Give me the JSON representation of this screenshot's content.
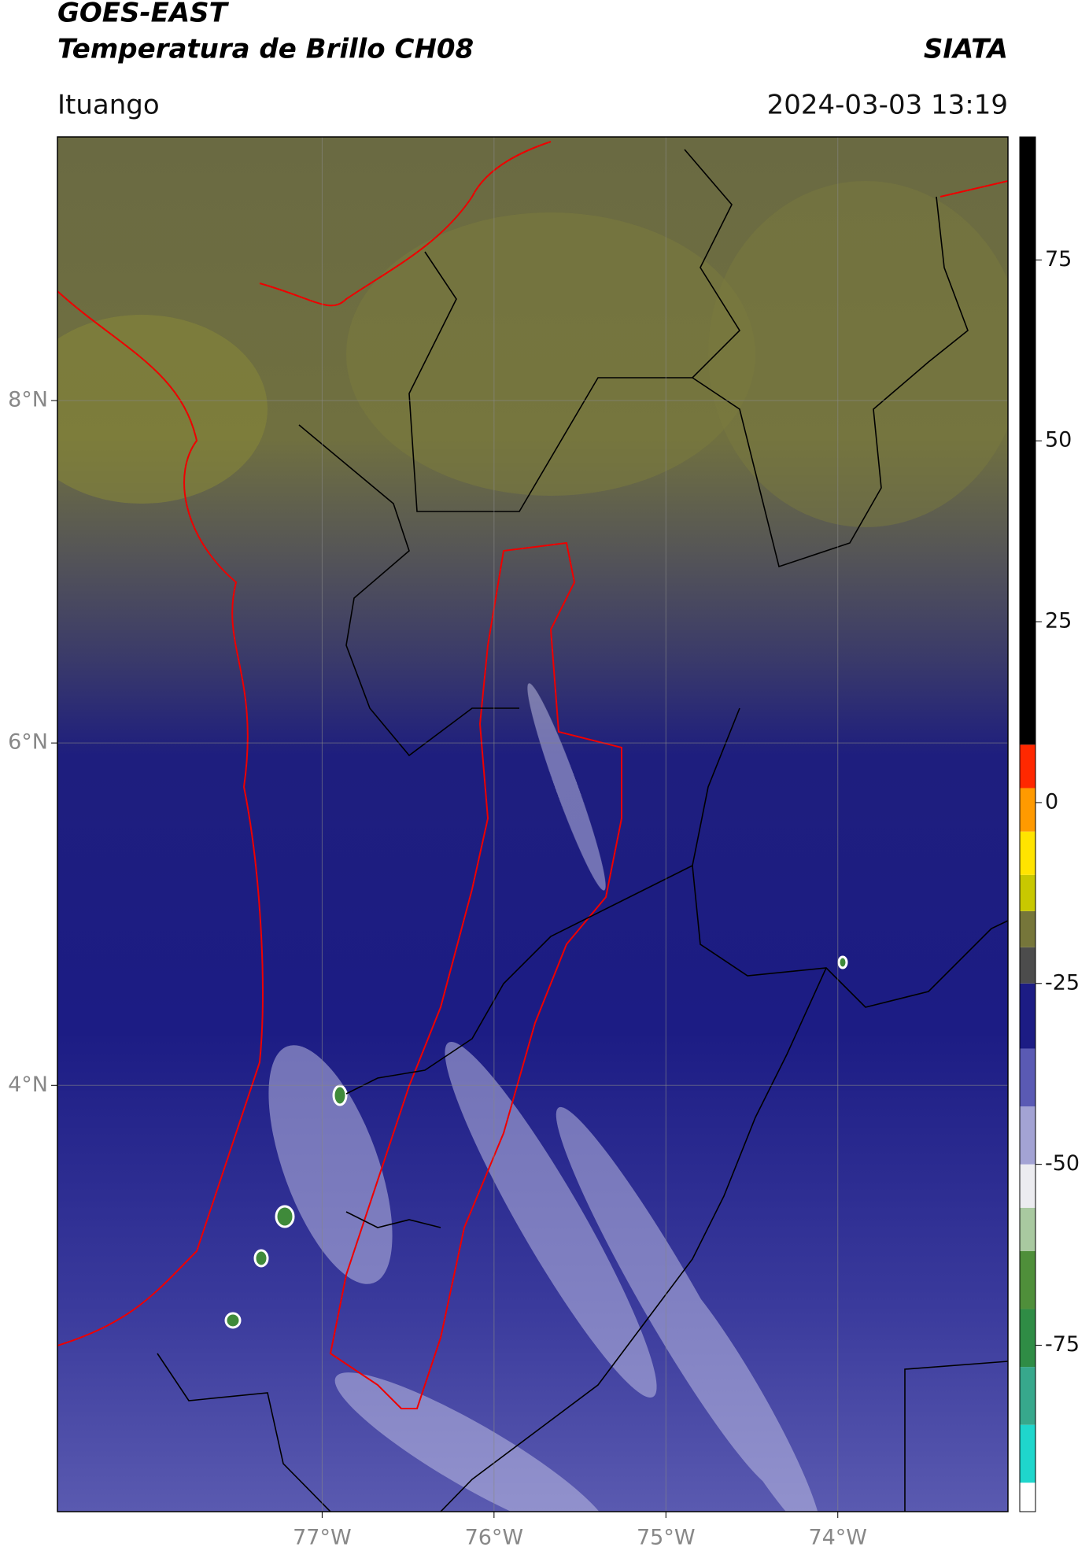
{
  "map_data": {
    "title": "GOES-EAST",
    "subtitle": "Temperatura de Brillo CH08",
    "source": "SIATA",
    "region": "Ituango",
    "datetime": "2024-03-03 13:19",
    "xlim": [
      -78.54,
      -73.01
    ],
    "ylim": [
      1.51,
      9.54
    ],
    "xticks": [
      {
        "value": -77,
        "label": "77°W"
      },
      {
        "value": -76,
        "label": "76°W"
      },
      {
        "value": -75,
        "label": "75°W"
      },
      {
        "value": -74,
        "label": "74°W"
      }
    ],
    "yticks": [
      {
        "value": 8,
        "label": "8°N"
      },
      {
        "value": 6,
        "label": "6°N"
      },
      {
        "value": 4,
        "label": "4°N"
      }
    ],
    "grid": true,
    "colorbar": {
      "lim": [
        -98,
        92
      ],
      "ticks": [
        75,
        50,
        25,
        0,
        -25,
        -50,
        -75
      ],
      "segments": [
        {
          "from": -98,
          "to": -94,
          "color": "#ffffff"
        },
        {
          "from": -94,
          "to": -86,
          "color": "#1fd6cc"
        },
        {
          "from": -86,
          "to": -78,
          "color": "#37a88c"
        },
        {
          "from": -78,
          "to": -70,
          "color": "#2f8c45"
        },
        {
          "from": -70,
          "to": -62,
          "color": "#4f8f3a"
        },
        {
          "from": -62,
          "to": -56,
          "color": "#a9c9a0"
        },
        {
          "from": -56,
          "to": -50,
          "color": "#ececf0"
        },
        {
          "from": -50,
          "to": -42,
          "color": "#a3a3d4"
        },
        {
          "from": -42,
          "to": -34,
          "color": "#5a5ab4"
        },
        {
          "from": -34,
          "to": -25,
          "color": "#1c1c84"
        },
        {
          "from": -25,
          "to": -20,
          "color": "#4c4c4c"
        },
        {
          "from": -20,
          "to": -15,
          "color": "#76763a"
        },
        {
          "from": -15,
          "to": -10,
          "color": "#c8c800"
        },
        {
          "from": -10,
          "to": -4,
          "color": "#ffe400"
        },
        {
          "from": -4,
          "to": 2,
          "color": "#ff9a00"
        },
        {
          "from": 2,
          "to": 8,
          "color": "#ff2800"
        },
        {
          "from": 8,
          "to": 92,
          "color": "#000000"
        }
      ]
    }
  }
}
